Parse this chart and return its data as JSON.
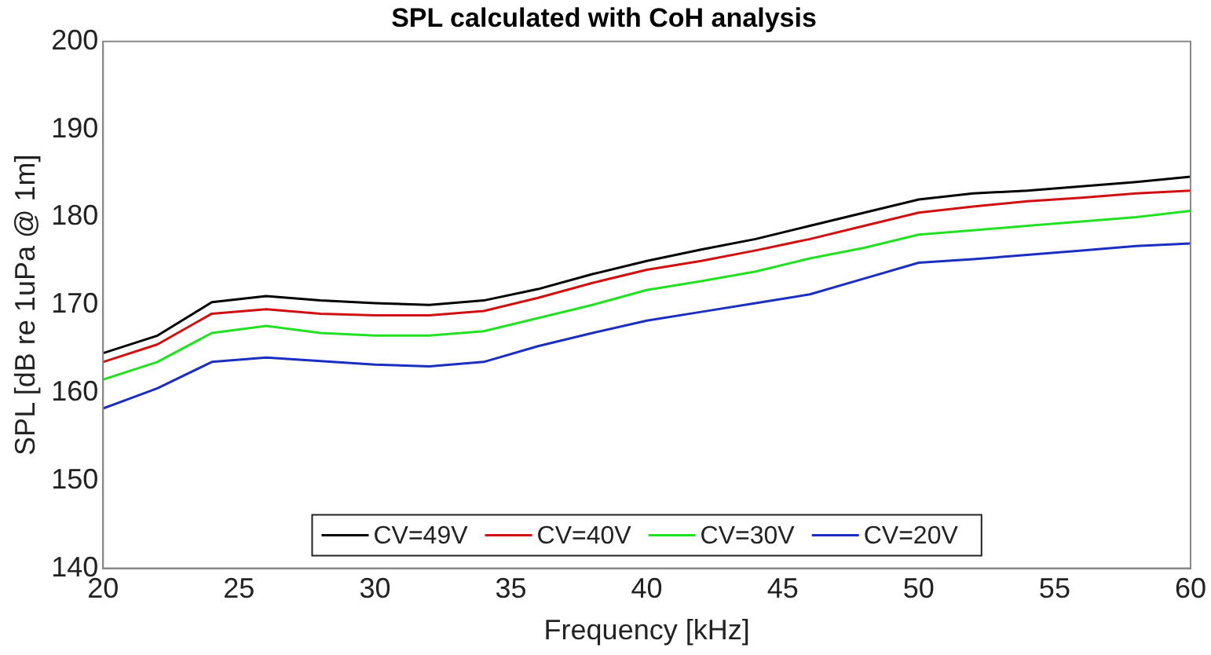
{
  "chart_data": {
    "type": "line",
    "title": "SPL calculated with CoH analysis",
    "xlabel": "Frequency [kHz]",
    "ylabel": "SPL [dB re 1uPa @ 1m]",
    "x": [
      20,
      22,
      24,
      26,
      28,
      30,
      32,
      34,
      36,
      38,
      40,
      42,
      44,
      46,
      48,
      50,
      52,
      54,
      56,
      58,
      60
    ],
    "series": [
      {
        "name": "CV=49V",
        "color": "#000000",
        "values": [
          164.5,
          166.5,
          170.3,
          171,
          170.5,
          170.2,
          170,
          170.5,
          171.8,
          173.5,
          175,
          176.3,
          177.5,
          179,
          180.5,
          182,
          182.7,
          183,
          183.5,
          184,
          184.6
        ]
      },
      {
        "name": "CV=40V",
        "color": "#d01010",
        "values": [
          163.5,
          165.5,
          169,
          169.5,
          169,
          168.8,
          168.8,
          169.3,
          170.8,
          172.5,
          174,
          175,
          176.2,
          177.5,
          179,
          180.5,
          181.2,
          181.8,
          182.2,
          182.7,
          183
        ]
      },
      {
        "name": "CV=30V",
        "color": "#22e022",
        "values": [
          161.5,
          163.5,
          166.8,
          167.6,
          166.8,
          166.5,
          166.5,
          167,
          168.5,
          170,
          171.7,
          172.7,
          173.8,
          175.3,
          176.5,
          178,
          178.5,
          179,
          179.5,
          180,
          180.7
        ]
      },
      {
        "name": "CV=20V",
        "color": "#1a2ec0",
        "values": [
          158.2,
          160.5,
          163.5,
          164,
          163.6,
          163.2,
          163,
          163.5,
          165.3,
          166.8,
          168.2,
          169.2,
          170.2,
          171.2,
          173,
          174.8,
          175.2,
          175.7,
          176.2,
          176.7,
          177
        ]
      }
    ],
    "xlim": [
      20,
      60
    ],
    "xticks": [
      20,
      25,
      30,
      35,
      40,
      45,
      50,
      55,
      60
    ],
    "ylim": [
      140,
      200
    ],
    "yticks": [
      140,
      150,
      160,
      170,
      180,
      190,
      200
    ],
    "grid": false,
    "legend": "bottom",
    "marker": "none",
    "line_style": "solid"
  }
}
